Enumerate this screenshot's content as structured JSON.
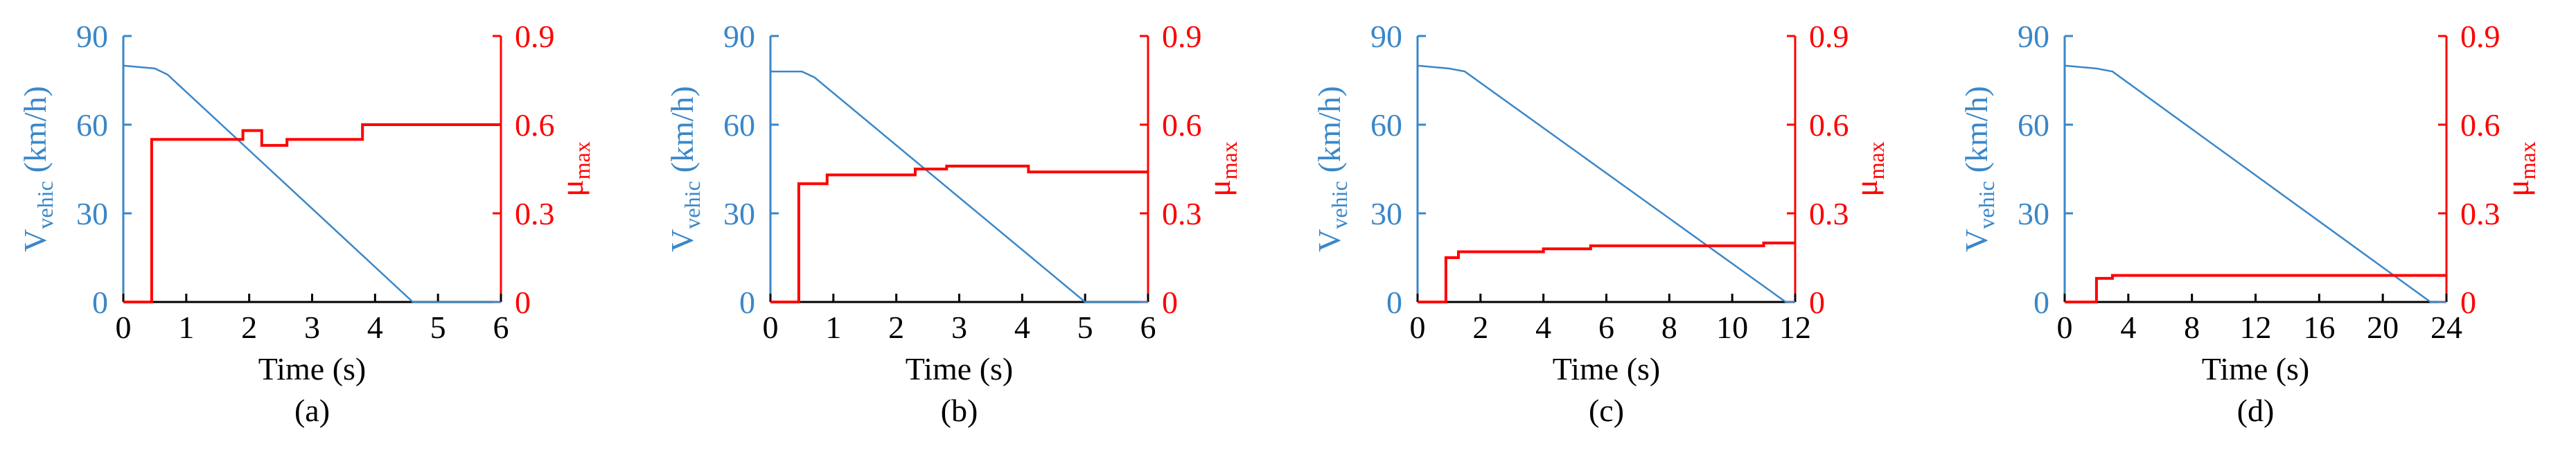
{
  "chart_data": [
    {
      "type": "line",
      "caption": "(a)",
      "xlabel": "Time (s)",
      "ylabel": {
        "main": "V",
        "sub": "vehic",
        "rest": "(km/h)"
      },
      "y2label": {
        "main": "μ",
        "sub": "max"
      },
      "xlim": [
        0,
        6
      ],
      "xticks": [
        0,
        1,
        2,
        3,
        4,
        5,
        6
      ],
      "ylim": [
        0,
        90
      ],
      "yticks": [
        0,
        30,
        60,
        90
      ],
      "y2lim": [
        0,
        0.9
      ],
      "y2ticks": [
        0,
        0.3,
        0.6,
        0.9
      ],
      "series": [
        {
          "color": "#3a87c8",
          "x": [
            0,
            0.5,
            0.7,
            4.6,
            6
          ],
          "values": [
            80,
            79,
            77,
            0,
            0
          ]
        },
        {
          "color": "#ff0000",
          "axis": "y2",
          "x": [
            0,
            0.45,
            0.45,
            1.9,
            1.9,
            2.2,
            2.2,
            2.6,
            2.6,
            3.8,
            3.8,
            6
          ],
          "values": [
            0,
            0,
            0.55,
            0.55,
            0.58,
            0.58,
            0.53,
            0.53,
            0.55,
            0.55,
            0.6,
            0.6
          ]
        }
      ]
    },
    {
      "type": "line",
      "caption": "(b)",
      "xlabel": "Time (s)",
      "ylabel": {
        "main": "V",
        "sub": "vehic",
        "rest": "(km/h)"
      },
      "y2label": {
        "main": "μ",
        "sub": "max"
      },
      "xlim": [
        0,
        6
      ],
      "xticks": [
        0,
        1,
        2,
        3,
        4,
        5,
        6
      ],
      "ylim": [
        0,
        90
      ],
      "yticks": [
        0,
        30,
        60,
        90
      ],
      "y2lim": [
        0,
        0.9
      ],
      "y2ticks": [
        0,
        0.3,
        0.6,
        0.9
      ],
      "series": [
        {
          "color": "#3a87c8",
          "x": [
            0,
            0.5,
            0.7,
            5.0,
            6
          ],
          "values": [
            78,
            78,
            76,
            0,
            0
          ]
        },
        {
          "color": "#ff0000",
          "axis": "y2",
          "x": [
            0,
            0.45,
            0.45,
            0.9,
            0.9,
            2.3,
            2.3,
            2.8,
            2.8,
            4.1,
            4.1,
            6
          ],
          "values": [
            0,
            0,
            0.4,
            0.4,
            0.43,
            0.43,
            0.45,
            0.45,
            0.46,
            0.46,
            0.44,
            0.44
          ]
        }
      ]
    },
    {
      "type": "line",
      "caption": "(c)",
      "xlabel": "Time (s)",
      "ylabel": {
        "main": "V",
        "sub": "vehic",
        "rest": "(km/h)"
      },
      "y2label": {
        "main": "μ",
        "sub": "max"
      },
      "xlim": [
        0,
        12
      ],
      "xticks": [
        0,
        2,
        4,
        6,
        8,
        10,
        12
      ],
      "ylim": [
        0,
        90
      ],
      "yticks": [
        0,
        30,
        60,
        90
      ],
      "y2lim": [
        0,
        0.9
      ],
      "y2ticks": [
        0,
        0.3,
        0.6,
        0.9
      ],
      "series": [
        {
          "color": "#3a87c8",
          "x": [
            0,
            1,
            1.5,
            11.7,
            12
          ],
          "values": [
            80,
            79,
            78,
            0,
            0
          ]
        },
        {
          "color": "#ff0000",
          "axis": "y2",
          "x": [
            0,
            0.9,
            0.9,
            1.3,
            1.3,
            4,
            4,
            5.5,
            5.5,
            11,
            11,
            12
          ],
          "values": [
            0,
            0,
            0.15,
            0.15,
            0.17,
            0.17,
            0.18,
            0.18,
            0.19,
            0.19,
            0.2,
            0.2
          ]
        }
      ]
    },
    {
      "type": "line",
      "caption": "(d)",
      "xlabel": "Time (s)",
      "ylabel": {
        "main": "V",
        "sub": "vehic",
        "rest": "(km/h)"
      },
      "y2label": {
        "main": "μ",
        "sub": "max"
      },
      "xlim": [
        0,
        24
      ],
      "xticks": [
        0,
        4,
        8,
        12,
        16,
        20,
        24
      ],
      "ylim": [
        0,
        90
      ],
      "yticks": [
        0,
        30,
        60,
        90
      ],
      "y2lim": [
        0,
        0.9
      ],
      "y2ticks": [
        0,
        0.3,
        0.6,
        0.9
      ],
      "series": [
        {
          "color": "#3a87c8",
          "x": [
            0,
            2,
            3,
            23,
            24
          ],
          "values": [
            80,
            79,
            78,
            0,
            0
          ]
        },
        {
          "color": "#ff0000",
          "axis": "y2",
          "x": [
            0,
            2,
            2,
            3,
            3,
            24
          ],
          "values": [
            0,
            0,
            0.08,
            0.08,
            0.09,
            0.09
          ]
        }
      ]
    }
  ]
}
